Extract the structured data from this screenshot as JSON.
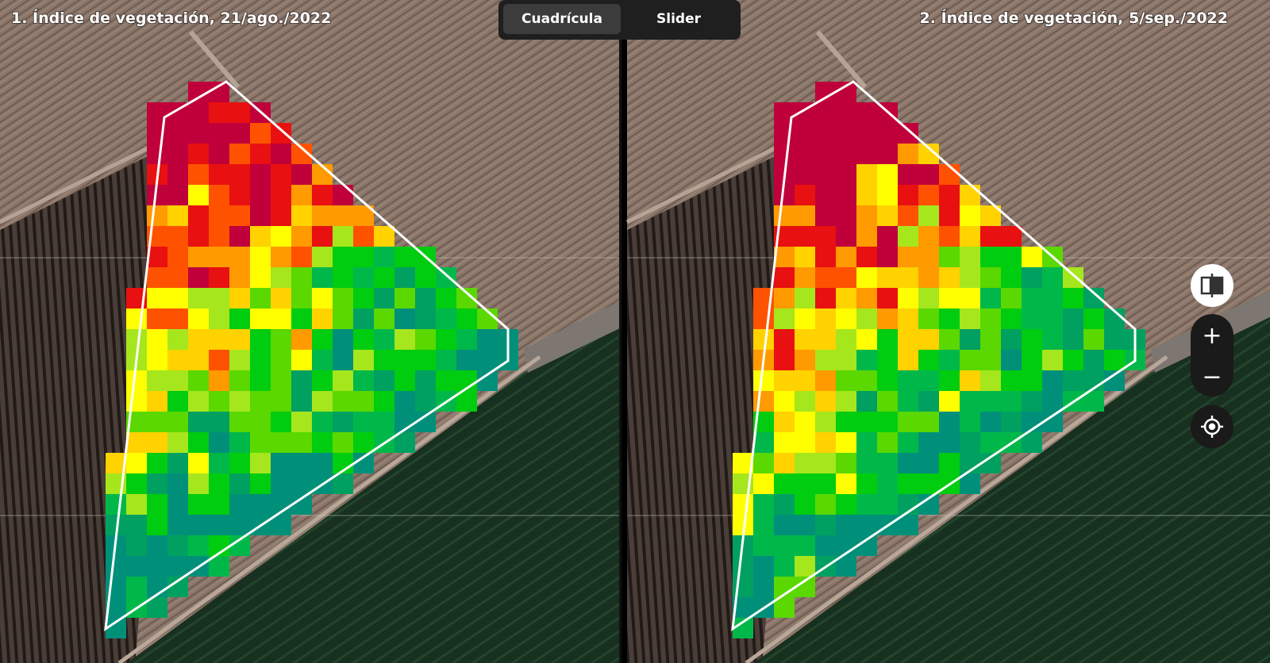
{
  "panels": [
    {
      "title": "1. Índice de vegetación, 21/ago./2022"
    },
    {
      "title": "2. Índice de vegetación, 5/sep./2022"
    }
  ],
  "view_toggle": {
    "options": [
      "Cuadrícula",
      "Slider"
    ]
  },
  "zoom_controls": {
    "zoom_in": "+",
    "zoom_out": "−"
  }
}
